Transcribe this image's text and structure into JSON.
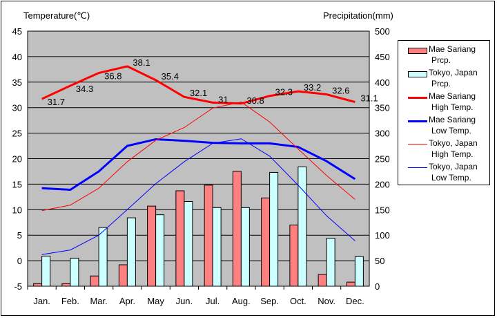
{
  "chart_data": {
    "type": "bar+line",
    "left_axis_title": "Temperature(℃)",
    "right_axis_title": "Precipitation(mm)",
    "categories": [
      "Jan.",
      "Feb.",
      "Mar.",
      "Apr.",
      "May",
      "Jun.",
      "Jul.",
      "Aug.",
      "Sep.",
      "Oct.",
      "Nov.",
      "Dec."
    ],
    "ylim_left": [
      -5,
      45
    ],
    "ylim_right": [
      0,
      500
    ],
    "left_ticks": [
      "45",
      "40",
      "35",
      "30",
      "25",
      "20",
      "15",
      "10",
      "5",
      "0",
      "-5"
    ],
    "right_ticks": [
      "500",
      "450",
      "400",
      "350",
      "300",
      "250",
      "200",
      "150",
      "100",
      "50",
      "0"
    ],
    "grid": true,
    "legend_placement": "right",
    "series": [
      {
        "name": "Mae Sariang Prcp.",
        "legend": [
          "Mae Sariang",
          "Prcp."
        ],
        "kind": "bar",
        "axis": "right",
        "color": "#ff8080",
        "values": [
          5,
          5,
          20,
          42,
          157,
          187,
          198,
          225,
          173,
          120,
          23,
          8
        ]
      },
      {
        "name": "Tokyo, Japan Prcp.",
        "legend": [
          "Tokyo, Japan",
          "Prcp."
        ],
        "kind": "bar",
        "axis": "right",
        "color": "#ccffff",
        "values": [
          59,
          55,
          115,
          134,
          140,
          166,
          154,
          154,
          223,
          234,
          94,
          58
        ]
      },
      {
        "name": "Mae Sariang High Temp.",
        "legend": [
          "Mae Sariang",
          "High Temp."
        ],
        "kind": "line",
        "axis": "left",
        "color": "#ff0000",
        "width": 3,
        "values": [
          31.7,
          34.3,
          36.8,
          38.1,
          35.4,
          32.1,
          31,
          30.8,
          32.3,
          33.2,
          32.6,
          31.1
        ],
        "labels": [
          "31.7",
          "34.3",
          "36.8",
          "38.1",
          "35.4",
          "32.1",
          "31",
          "30.8",
          "32.3",
          "33.2",
          "32.6",
          "31.1"
        ]
      },
      {
        "name": "Mae Sariang Low Temp.",
        "legend": [
          "Mae Sariang",
          "Low Temp."
        ],
        "kind": "line",
        "axis": "left",
        "color": "#0000ff",
        "width": 3,
        "values": [
          14.2,
          13.9,
          17.5,
          22.5,
          23.8,
          23.5,
          23.1,
          23,
          23,
          22.3,
          19.5,
          16
        ]
      },
      {
        "name": "Tokyo, Japan High Temp.",
        "legend": [
          "Tokyo, Japan",
          "High Temp."
        ],
        "kind": "line",
        "axis": "left",
        "color": "#ff0000",
        "width": 1,
        "values": [
          9.8,
          10.9,
          14.2,
          19.4,
          23.6,
          26.1,
          29.9,
          31.1,
          27.2,
          21.9,
          16.7,
          12.0
        ]
      },
      {
        "name": "Tokyo, Japan Low Temp.",
        "legend": [
          "Tokyo, Japan",
          "Low Temp."
        ],
        "kind": "line",
        "axis": "left",
        "color": "#0000ff",
        "width": 1,
        "values": [
          1.2,
          2.1,
          5.0,
          10.0,
          15.1,
          19.4,
          23.0,
          23.9,
          20.5,
          14.8,
          8.8,
          3.9
        ]
      }
    ]
  }
}
